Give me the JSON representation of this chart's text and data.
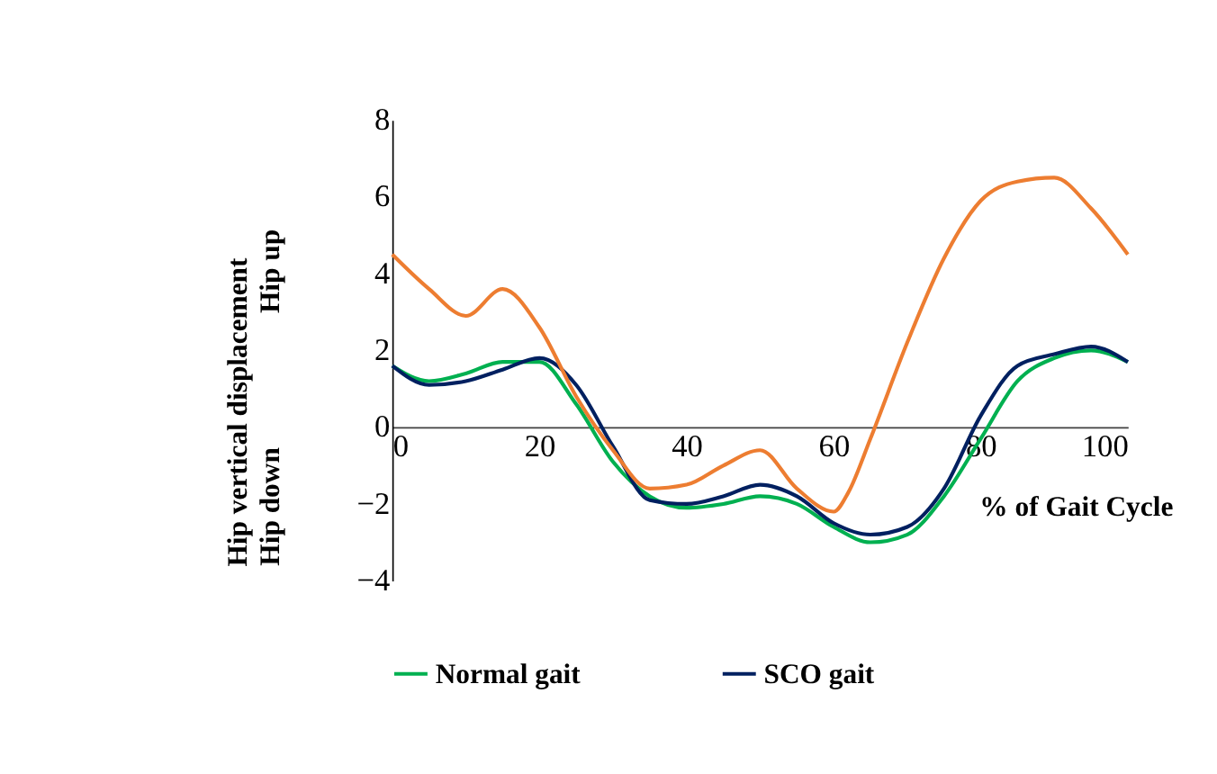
{
  "chart_data": {
    "type": "line",
    "xlabel": "% of Gait Cycle",
    "ylabel": "Hip vertical displacement",
    "annotations": [
      "Hip down",
      "Hip up"
    ],
    "x": [
      0,
      5,
      10,
      15,
      20,
      25,
      30,
      35,
      40,
      45,
      50,
      55,
      60,
      65,
      70,
      75,
      80,
      85,
      90,
      95,
      100
    ],
    "series": [
      {
        "name": "Normal gait",
        "color": "#00b050",
        "values": [
          1.6,
          1.2,
          1.4,
          1.7,
          1.7,
          0.6,
          -0.9,
          -1.8,
          -2.1,
          -2.0,
          -1.8,
          -2.0,
          -2.6,
          -3.0,
          -2.8,
          -1.8,
          -0.3,
          1.2,
          1.8,
          2.0,
          1.7
        ]
      },
      {
        "name": "SCO gait",
        "color": "#002060",
        "values": [
          1.6,
          1.1,
          1.2,
          1.5,
          1.8,
          1.1,
          -0.5,
          -1.9,
          -2.0,
          -1.8,
          -1.5,
          -1.8,
          -2.5,
          -2.8,
          -2.6,
          -1.6,
          0.3,
          1.6,
          1.9,
          2.1,
          1.7
        ]
      },
      {
        "color": "#ed7d31",
        "x": [
          0,
          5,
          10,
          15,
          20,
          25,
          30,
          35,
          40,
          45,
          50,
          55,
          60,
          62,
          65,
          70,
          75,
          80,
          85,
          90,
          95,
          100
        ],
        "values": [
          4.5,
          3.6,
          2.9,
          3.6,
          2.6,
          0.8,
          -0.6,
          -1.6,
          -1.5,
          -1.0,
          -0.6,
          -1.6,
          -2.2,
          -1.7,
          -0.3,
          2.2,
          4.4,
          5.9,
          6.4,
          6.5,
          5.7,
          4.5
        ]
      }
    ],
    "xlim": [
      0,
      100
    ],
    "xticks": [
      0,
      20,
      40,
      60,
      80,
      100
    ],
    "ylim": [
      -4,
      8
    ],
    "yticks": [
      -4,
      -2,
      0,
      2,
      4,
      6,
      8
    ],
    "grid": false,
    "legend": "bottom",
    "marker": "none",
    "line_style": "solid"
  }
}
